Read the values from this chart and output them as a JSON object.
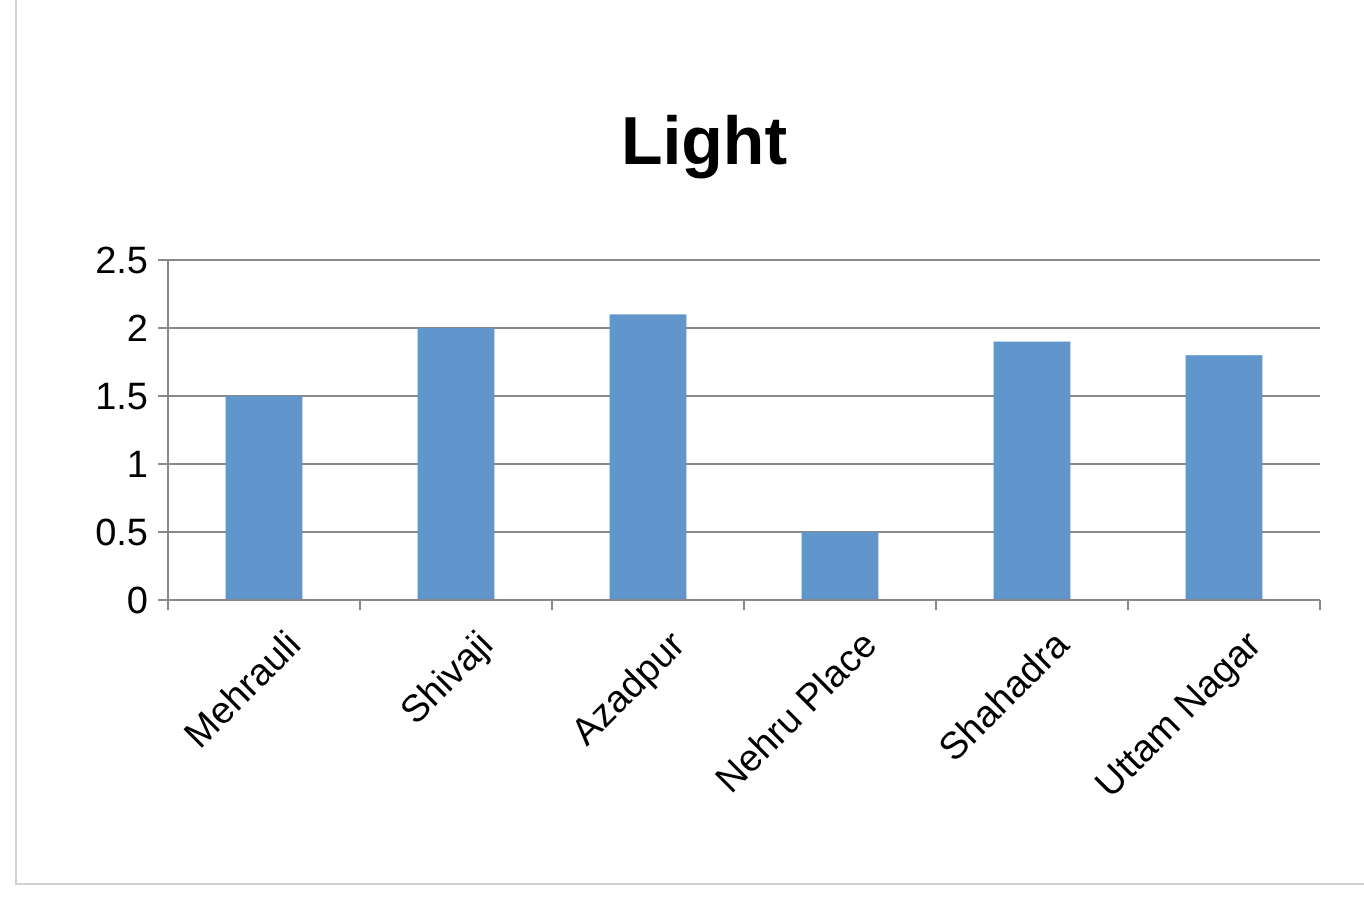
{
  "chart_data": {
    "type": "bar",
    "title": "Light",
    "categories": [
      "Mehrauli",
      "Shivaji",
      "Azadpur",
      "Nehru Place",
      "Shahadra",
      "Uttam Nagar"
    ],
    "values": [
      1.5,
      2,
      2.1,
      0.5,
      1.9,
      1.8
    ],
    "color": "#6096cc",
    "ylim": [
      0,
      2.5
    ],
    "yticks": [
      0,
      0.5,
      1,
      1.5,
      2,
      2.5
    ],
    "grid": "y"
  }
}
